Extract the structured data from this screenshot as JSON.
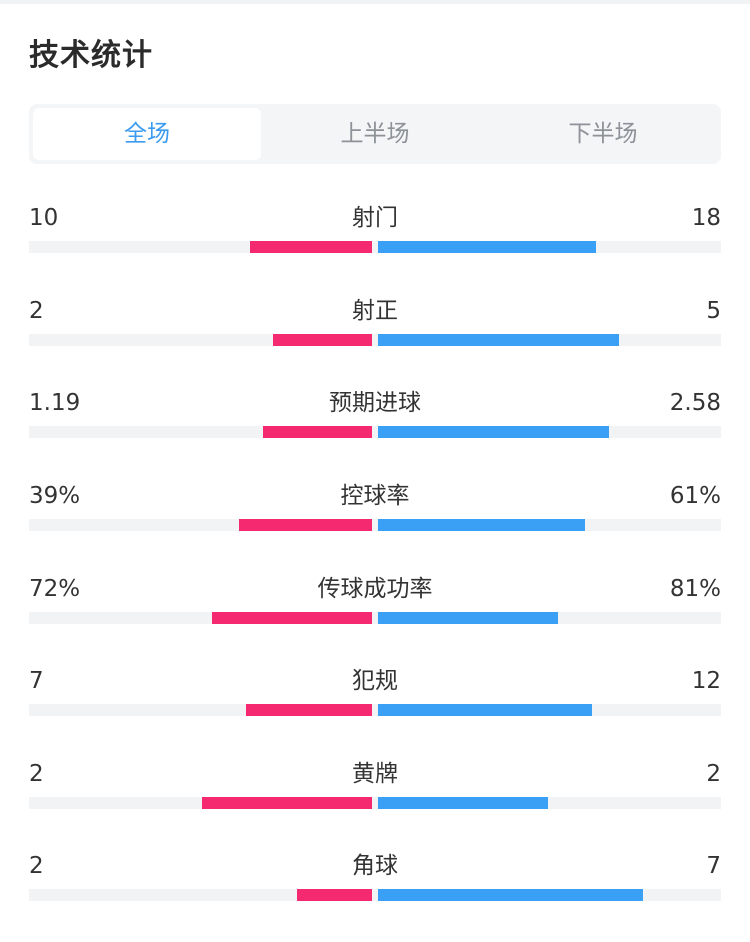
{
  "header": {
    "title": "技术统计"
  },
  "tabs": [
    {
      "label": "全场",
      "active": true
    },
    {
      "label": "上半场",
      "active": false
    },
    {
      "label": "下半场",
      "active": false
    }
  ],
  "colors": {
    "home": "#f4296f",
    "away": "#3aa0f5",
    "active_tab": "#3a9bf0"
  },
  "stats": [
    {
      "label": "射门",
      "home": "10",
      "away": "18",
      "home_fill": 0.36,
      "away_fill": 0.64
    },
    {
      "label": "射正",
      "home": "2",
      "away": "5",
      "home_fill": 0.29,
      "away_fill": 0.71
    },
    {
      "label": "预期进球",
      "home": "1.19",
      "away": "2.58",
      "home_fill": 0.32,
      "away_fill": 0.68
    },
    {
      "label": "控球率",
      "home": "39%",
      "away": "61%",
      "home_fill": 0.39,
      "away_fill": 0.61
    },
    {
      "label": "传球成功率",
      "home": "72%",
      "away": "81%",
      "home_fill": 0.47,
      "away_fill": 0.53
    },
    {
      "label": "犯规",
      "home": "7",
      "away": "12",
      "home_fill": 0.37,
      "away_fill": 0.63
    },
    {
      "label": "黄牌",
      "home": "2",
      "away": "2",
      "home_fill": 0.5,
      "away_fill": 0.5
    },
    {
      "label": "角球",
      "home": "2",
      "away": "7",
      "home_fill": 0.22,
      "away_fill": 0.78
    }
  ]
}
